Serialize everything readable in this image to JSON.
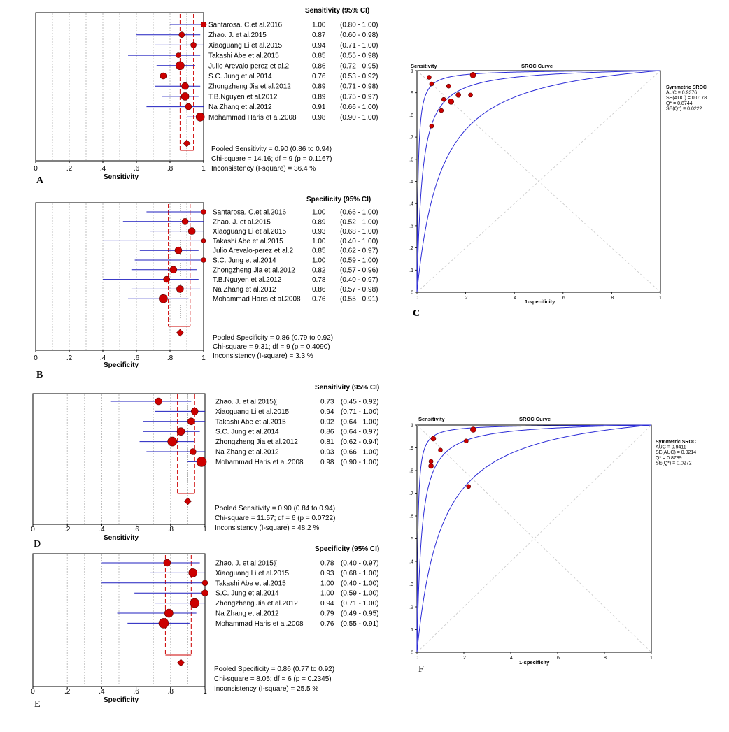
{
  "colors": {
    "point": "#cc0000",
    "ci": "#1f1fbf",
    "pooled": "#cc0000",
    "curve": "#2a2ad6",
    "grid": "#b0b0b0",
    "frame": "#000000"
  },
  "chart_data": [
    {
      "id": "A",
      "type": "forest",
      "panel_label": "A",
      "header": "Sensitivity (95% CI)",
      "xlabel": "Sensitivity",
      "xticks": [
        "0",
        ".2",
        ".4",
        ".6",
        ".8",
        "1"
      ],
      "studies": [
        {
          "name": "Santarosa. C.et al.2016",
          "value": "1.00",
          "ci": "(0.80 - 1.00)",
          "est": 1.0,
          "lo": 0.8,
          "hi": 1.0,
          "w": 4
        },
        {
          "name": "Zhao. J. et al.2015",
          "value": "0.87",
          "ci": "(0.60 - 0.98)",
          "est": 0.87,
          "lo": 0.6,
          "hi": 0.98,
          "w": 4
        },
        {
          "name": "Xiaoguang Li et al.2015",
          "value": "0.94",
          "ci": "(0.71 - 1.00)",
          "est": 0.94,
          "lo": 0.71,
          "hi": 1.0,
          "w": 4
        },
        {
          "name": "Takashi Abe et al.2015",
          "value": "0.85",
          "ci": "(0.55 - 0.98)",
          "est": 0.85,
          "lo": 0.55,
          "hi": 0.98,
          "w": 3.5
        },
        {
          "name": "Julio Arevalo-perez et al.2",
          "value": "0.86",
          "ci": "(0.72 - 0.95)",
          "est": 0.86,
          "lo": 0.72,
          "hi": 0.95,
          "w": 6
        },
        {
          "name": "S.C. Jung et al.2014",
          "value": "0.76",
          "ci": "(0.53 - 0.92)",
          "est": 0.76,
          "lo": 0.53,
          "hi": 0.92,
          "w": 4.5
        },
        {
          "name": "Zhongzheng Jia et al.2012",
          "value": "0.89",
          "ci": "(0.71 - 0.98)",
          "est": 0.89,
          "lo": 0.71,
          "hi": 0.98,
          "w": 5
        },
        {
          "name": "T.B.Nguyen et al.2012",
          "value": "0.89",
          "ci": "(0.75 - 0.97)",
          "est": 0.89,
          "lo": 0.75,
          "hi": 0.97,
          "w": 5.5
        },
        {
          "name": "Na Zhang et al.2012",
          "value": "0.91",
          "ci": "(0.66 - 1.00)",
          "est": 0.91,
          "lo": 0.66,
          "hi": 1.0,
          "w": 4.5
        },
        {
          "name": "Mohammad Haris et al.2008",
          "value": "0.98",
          "ci": "(0.90 - 1.00)",
          "est": 0.98,
          "lo": 0.9,
          "hi": 1.0,
          "w": 6
        }
      ],
      "pooled": {
        "est": 0.9,
        "lo": 0.86,
        "hi": 0.94
      },
      "stats": [
        "Pooled Sensitivity = 0.90 (0.86 to 0.94)",
        "Chi-square = 14.16; df =  9 (p = 0.1167)",
        "Inconsistency (I-square) = 36.4 %"
      ]
    },
    {
      "id": "B",
      "type": "forest",
      "panel_label": "B",
      "header": "Specificity (95% CI)",
      "xlabel": "Specificity",
      "xticks": [
        "0",
        ".2",
        ".4",
        ".6",
        ".8",
        "1"
      ],
      "studies": [
        {
          "name": "Santarosa. C.et al.2016",
          "value": "1.00",
          "ci": "(0.66 - 1.00)",
          "est": 1.0,
          "lo": 0.66,
          "hi": 1.0,
          "w": 3.5
        },
        {
          "name": "Zhao. J. et al.2015",
          "value": "0.89",
          "ci": "(0.52 - 1.00)",
          "est": 0.89,
          "lo": 0.52,
          "hi": 1.0,
          "w": 4.5
        },
        {
          "name": "Xiaoguang Li et al.2015",
          "value": "0.93",
          "ci": "(0.68 - 1.00)",
          "est": 0.93,
          "lo": 0.68,
          "hi": 1.0,
          "w": 5
        },
        {
          "name": "Takashi Abe et al.2015",
          "value": "1.00",
          "ci": "(0.40 - 1.00)",
          "est": 1.0,
          "lo": 0.4,
          "hi": 1.0,
          "w": 3
        },
        {
          "name": "Julio Arevalo-perez et al.2",
          "value": "0.85",
          "ci": "(0.62 - 0.97)",
          "est": 0.85,
          "lo": 0.62,
          "hi": 0.97,
          "w": 5
        },
        {
          "name": "S.C. Jung et al.2014",
          "value": "1.00",
          "ci": "(0.59 - 1.00)",
          "est": 1.0,
          "lo": 0.59,
          "hi": 1.0,
          "w": 3.5
        },
        {
          "name": "Zhongzheng Jia et al.2012",
          "value": "0.82",
          "ci": "(0.57 - 0.96)",
          "est": 0.82,
          "lo": 0.57,
          "hi": 0.96,
          "w": 5
        },
        {
          "name": "T.B.Nguyen et al.2012",
          "value": "0.78",
          "ci": "(0.40 - 0.97)",
          "est": 0.78,
          "lo": 0.4,
          "hi": 0.97,
          "w": 4.5
        },
        {
          "name": "Na Zhang et al.2012",
          "value": "0.86",
          "ci": "(0.57 - 0.98)",
          "est": 0.86,
          "lo": 0.57,
          "hi": 0.98,
          "w": 5
        },
        {
          "name": "Mohammad Haris et al.2008",
          "value": "0.76",
          "ci": "(0.55 - 0.91)",
          "est": 0.76,
          "lo": 0.55,
          "hi": 0.91,
          "w": 6
        }
      ],
      "pooled": {
        "est": 0.86,
        "lo": 0.79,
        "hi": 0.92
      },
      "stats": [
        "Pooled Specificity = 0.86 (0.79 to 0.92)",
        "Chi-square = 9.31; df =  9 (p = 0.4090)",
        "Inconsistency (I-square) = 3.3 %"
      ]
    },
    {
      "id": "D",
      "type": "forest",
      "panel_label": "D",
      "header": "Sensitivity (95% CI)",
      "xlabel": "Sensitivity",
      "xticks": [
        "0",
        ".2",
        ".4",
        ".6",
        ".8",
        "1"
      ],
      "studies": [
        {
          "name": "Zhao. J. et al 2015⸨",
          "value": "0.73",
          "ci": "(0.45 - 0.92)",
          "est": 0.73,
          "lo": 0.45,
          "hi": 0.92,
          "w": 5
        },
        {
          "name": "Xiaoguang Li et al.2015",
          "value": "0.94",
          "ci": "(0.71 - 1.00)",
          "est": 0.94,
          "lo": 0.71,
          "hi": 1.0,
          "w": 5
        },
        {
          "name": "Takashi Abe et al.2015",
          "value": "0.92",
          "ci": "(0.64 - 1.00)",
          "est": 0.92,
          "lo": 0.64,
          "hi": 1.0,
          "w": 5
        },
        {
          "name": "S.C. Jung et al.2014",
          "value": "0.86",
          "ci": "(0.64 - 0.97)",
          "est": 0.86,
          "lo": 0.64,
          "hi": 0.97,
          "w": 5.5
        },
        {
          "name": "Zhongzheng Jia et al.2012",
          "value": "0.81",
          "ci": "(0.62 - 0.94)",
          "est": 0.81,
          "lo": 0.62,
          "hi": 0.94,
          "w": 6.5
        },
        {
          "name": "Na Zhang et al.2012",
          "value": "0.93",
          "ci": "(0.66 - 1.00)",
          "est": 0.93,
          "lo": 0.66,
          "hi": 1.0,
          "w": 4.5
        },
        {
          "name": "Mohammad Haris et al.2008",
          "value": "0.98",
          "ci": "(0.90 - 1.00)",
          "est": 0.98,
          "lo": 0.9,
          "hi": 1.0,
          "w": 7
        }
      ],
      "pooled": {
        "est": 0.9,
        "lo": 0.84,
        "hi": 0.94
      },
      "stats": [
        "Pooled Sensitivity = 0.90 (0.84 to 0.94)",
        "Chi-square = 11.57; df =  6 (p = 0.0722)",
        "Inconsistency (I-square) = 48.2 %"
      ]
    },
    {
      "id": "E",
      "type": "forest",
      "panel_label": "E",
      "header": "Specificity (95% CI)",
      "xlabel": "Specificity",
      "xticks": [
        "0",
        ".2",
        ".4",
        ".6",
        ".8",
        "1"
      ],
      "studies": [
        {
          "name": "Zhao. J. et al 2015⸨",
          "value": "0.78",
          "ci": "(0.40 - 0.97)",
          "est": 0.78,
          "lo": 0.4,
          "hi": 0.97,
          "w": 5
        },
        {
          "name": "Xiaoguang Li et al.2015",
          "value": "0.93",
          "ci": "(0.68 - 1.00)",
          "est": 0.93,
          "lo": 0.68,
          "hi": 1.0,
          "w": 6
        },
        {
          "name": "Takashi Abe et al.2015",
          "value": "1.00",
          "ci": "(0.40 - 1.00)",
          "est": 1.0,
          "lo": 0.4,
          "hi": 1.0,
          "w": 4
        },
        {
          "name": "S.C. Jung et al.2014",
          "value": "1.00",
          "ci": "(0.59 - 1.00)",
          "est": 1.0,
          "lo": 0.59,
          "hi": 1.0,
          "w": 4.5
        },
        {
          "name": "Zhongzheng Jia et al.2012",
          "value": "0.94",
          "ci": "(0.71 - 1.00)",
          "est": 0.94,
          "lo": 0.71,
          "hi": 1.0,
          "w": 6.5
        },
        {
          "name": "Na Zhang et al.2012",
          "value": "0.79",
          "ci": "(0.49 - 0.95)",
          "est": 0.79,
          "lo": 0.49,
          "hi": 0.95,
          "w": 6
        },
        {
          "name": "Mohammad Haris et al.2008",
          "value": "0.76",
          "ci": "(0.55 - 0.91)",
          "est": 0.76,
          "lo": 0.55,
          "hi": 0.91,
          "w": 7
        }
      ],
      "pooled": {
        "est": 0.86,
        "lo": 0.77,
        "hi": 0.92
      },
      "stats": [
        "Pooled Specificity = 0.86 (0.77 to 0.92)",
        "Chi-square = 8.05; df =  6 (p = 0.2345)",
        "Inconsistency (I-square) = 25.5 %"
      ]
    },
    {
      "id": "C",
      "type": "sroc",
      "panel_label": "C",
      "title": "SROC Curve",
      "ylabel": "Sensitivity",
      "xlabel": "1-specificity",
      "xticks": [
        "0",
        ".2",
        ".4",
        ".6",
        ".8",
        "1"
      ],
      "yticks": [
        "0",
        ".1",
        ".2",
        ".3",
        ".4",
        ".5",
        ".6",
        ".7",
        ".8",
        ".9",
        "1"
      ],
      "legend": [
        "Symmetric SROC",
        "AUC = 0.9376",
        "SE(AUC) = 0.0178",
        "Q* = 0.8744",
        "SE(Q*) = 0.0222"
      ],
      "curves": [
        {
          "name": "SROC",
          "dor": 48.3
        },
        {
          "name": "upper",
          "dor": 220
        },
        {
          "name": "lower",
          "dor": 11
        }
      ],
      "points": [
        {
          "x": 0.05,
          "y": 0.97,
          "r": 3
        },
        {
          "x": 0.06,
          "y": 0.94,
          "r": 3
        },
        {
          "x": 0.23,
          "y": 0.98,
          "r": 4
        },
        {
          "x": 0.13,
          "y": 0.93,
          "r": 3
        },
        {
          "x": 0.17,
          "y": 0.89,
          "r": 3.5
        },
        {
          "x": 0.22,
          "y": 0.89,
          "r": 3
        },
        {
          "x": 0.11,
          "y": 0.87,
          "r": 3
        },
        {
          "x": 0.14,
          "y": 0.86,
          "r": 4
        },
        {
          "x": 0.1,
          "y": 0.82,
          "r": 3
        },
        {
          "x": 0.06,
          "y": 0.75,
          "r": 3
        }
      ]
    },
    {
      "id": "F",
      "type": "sroc",
      "panel_label": "F",
      "title": "SROC Curve",
      "ylabel": "Sensitivity",
      "xlabel": "1-specificity",
      "xticks": [
        "0",
        ".2",
        ".4",
        ".6",
        ".8",
        "1"
      ],
      "yticks": [
        "0",
        ".1",
        ".2",
        ".3",
        ".4",
        ".5",
        ".6",
        ".7",
        ".8",
        ".9",
        "1"
      ],
      "legend": [
        "Symmetric SROC",
        "AUC = 0.9411",
        "SE(AUC) = 0.0214",
        "Q* = 0.8789",
        "SE(Q*) = 0.0272"
      ],
      "curves": [
        {
          "name": "SROC",
          "dor": 52.5
        },
        {
          "name": "upper",
          "dor": 260
        },
        {
          "name": "lower",
          "dor": 10.5
        }
      ],
      "points": [
        {
          "x": 0.07,
          "y": 0.94,
          "r": 3.5
        },
        {
          "x": 0.24,
          "y": 0.98,
          "r": 4
        },
        {
          "x": 0.21,
          "y": 0.93,
          "r": 3
        },
        {
          "x": 0.1,
          "y": 0.89,
          "r": 3
        },
        {
          "x": 0.06,
          "y": 0.84,
          "r": 3
        },
        {
          "x": 0.06,
          "y": 0.82,
          "r": 3.5
        },
        {
          "x": 0.22,
          "y": 0.73,
          "r": 3
        }
      ]
    }
  ]
}
